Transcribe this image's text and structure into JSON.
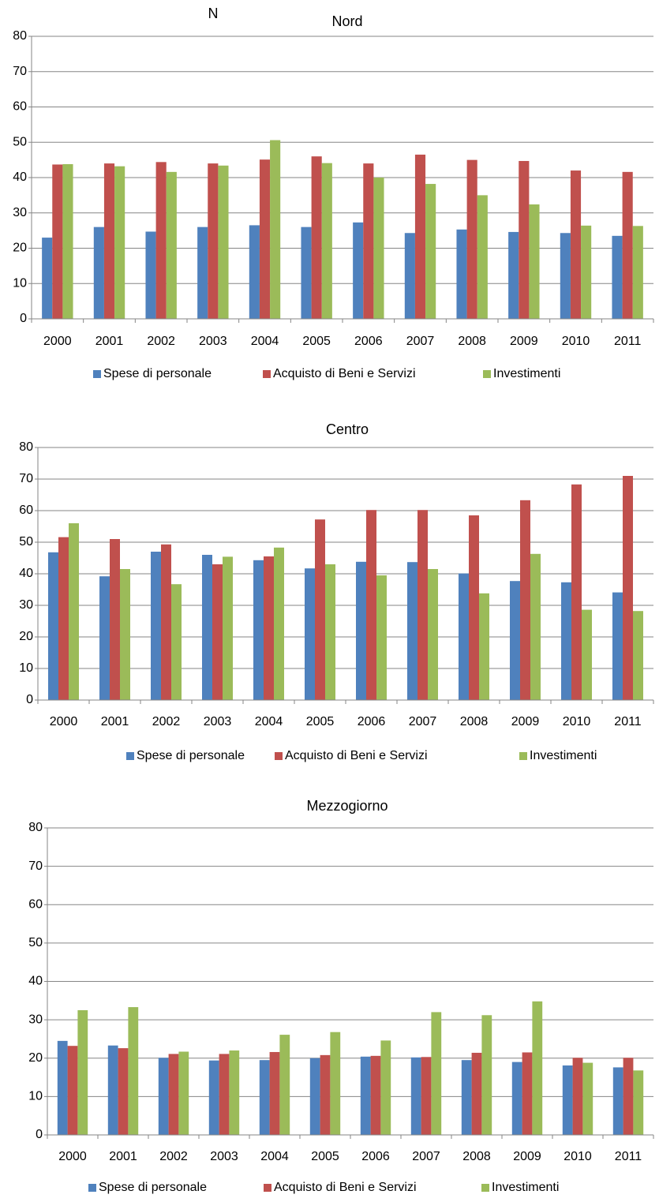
{
  "chart_data": [
    {
      "type": "bar",
      "title": "Nord",
      "annotation": "N",
      "categories": [
        "2000",
        "2001",
        "2002",
        "2003",
        "2004",
        "2005",
        "2006",
        "2007",
        "2008",
        "2009",
        "2010",
        "2011"
      ],
      "series": [
        {
          "name": "Spese di personale",
          "color": "#4f81bd",
          "values": [
            23,
            26,
            24.7,
            26,
            26.5,
            26,
            27.3,
            24.3,
            25.3,
            24.6,
            24.3,
            23.5
          ]
        },
        {
          "name": "Acquisto di Beni e Servizi",
          "color": "#c0504d",
          "values": [
            43.7,
            44,
            44.4,
            44,
            45.1,
            46,
            44,
            46.5,
            45,
            44.7,
            42,
            41.6
          ]
        },
        {
          "name": "Investimenti",
          "color": "#9bbb59",
          "values": [
            43.8,
            43.2,
            41.6,
            43.4,
            50.6,
            44.1,
            40,
            38.2,
            35,
            32.4,
            26.4,
            26.3
          ]
        }
      ],
      "ylim": [
        0,
        80
      ],
      "yticks": [
        0,
        10,
        20,
        30,
        40,
        50,
        60,
        70,
        80
      ],
      "grid": true,
      "legend": "bottom"
    },
    {
      "type": "bar",
      "title": "Centro",
      "categories": [
        "2000",
        "2001",
        "2002",
        "2003",
        "2004",
        "2005",
        "2006",
        "2007",
        "2008",
        "2009",
        "2010",
        "2011"
      ],
      "series": [
        {
          "name": "Spese di personale",
          "color": "#4f81bd",
          "values": [
            46.8,
            39.2,
            47,
            46,
            44.3,
            41.7,
            43.8,
            43.7,
            40.1,
            37.7,
            37.3,
            34.1
          ]
        },
        {
          "name": "Acquisto di Beni e Servizi",
          "color": "#c0504d",
          "values": [
            51.6,
            51,
            49.3,
            43,
            45.5,
            57.2,
            60.2,
            60.2,
            58.5,
            63.3,
            68.3,
            71
          ]
        },
        {
          "name": "Investimenti",
          "color": "#9bbb59",
          "values": [
            56,
            41.5,
            36.7,
            45.4,
            48.3,
            43,
            39.5,
            41.5,
            33.8,
            46.3,
            28.6,
            28.2
          ]
        }
      ],
      "ylim": [
        0,
        80
      ],
      "yticks": [
        0,
        10,
        20,
        30,
        40,
        50,
        60,
        70,
        80
      ],
      "grid": true,
      "legend": "bottom"
    },
    {
      "type": "bar",
      "title": "Mezzogiorno",
      "categories": [
        "2000",
        "2001",
        "2002",
        "2003",
        "2004",
        "2005",
        "2006",
        "2007",
        "2008",
        "2009",
        "2010",
        "2011"
      ],
      "series": [
        {
          "name": "Spese di personale",
          "color": "#4f81bd",
          "values": [
            24.5,
            23.3,
            20.1,
            19.4,
            19.5,
            20,
            20.4,
            20.2,
            19.5,
            19,
            18.1,
            17.6
          ]
        },
        {
          "name": "Acquisto di Beni e Servizi",
          "color": "#c0504d",
          "values": [
            23.2,
            22.6,
            21.1,
            21.1,
            21.6,
            20.8,
            20.6,
            20.3,
            21.4,
            21.5,
            20.1,
            20.1
          ]
        },
        {
          "name": "Investimenti",
          "color": "#9bbb59",
          "values": [
            32.5,
            33.3,
            21.7,
            22,
            26.1,
            26.8,
            24.6,
            32,
            31.2,
            34.8,
            18.8,
            16.8
          ]
        }
      ],
      "ylim": [
        0,
        80
      ],
      "yticks": [
        0,
        10,
        20,
        30,
        40,
        50,
        60,
        70,
        80
      ],
      "grid": true,
      "legend": "bottom"
    }
  ]
}
